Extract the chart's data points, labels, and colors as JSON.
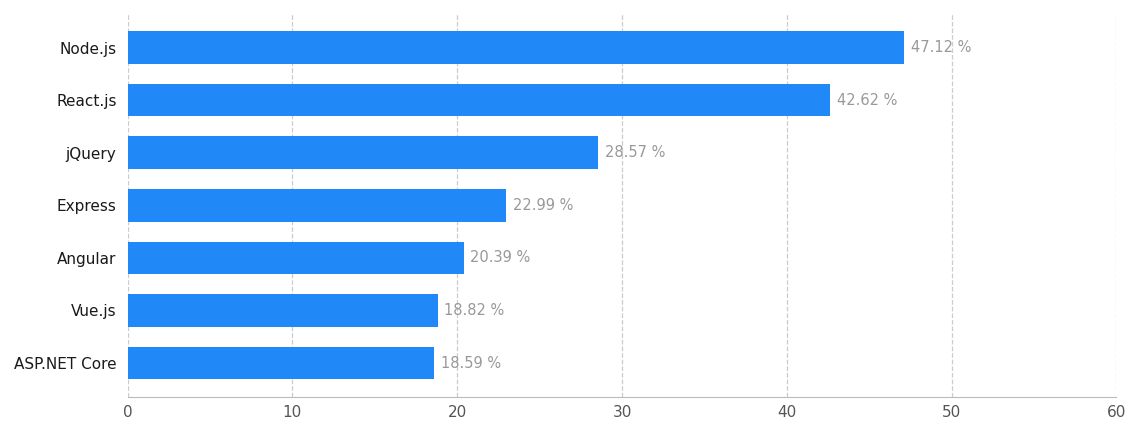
{
  "categories": [
    "ASP.NET Core",
    "Vue.js",
    "Angular",
    "Express",
    "jQuery",
    "React.js",
    "Node.js"
  ],
  "values": [
    18.59,
    18.82,
    20.39,
    22.99,
    28.57,
    42.62,
    47.12
  ],
  "labels": [
    "18.59 %",
    "18.82 %",
    "20.39 %",
    "22.99 %",
    "28.57 %",
    "42.62 %",
    "47.12 %"
  ],
  "bar_color": "#2188f7",
  "background_color": "#ffffff",
  "label_color": "#999999",
  "tick_label_color": "#1a1a1a",
  "xlim": [
    0,
    60
  ],
  "xticks": [
    0,
    10,
    20,
    30,
    40,
    50,
    60
  ],
  "bar_height": 0.62,
  "label_fontsize": 10.5,
  "tick_fontsize": 11,
  "ytick_fontsize": 11,
  "grid_color": "#cccccc",
  "figsize": [
    11.4,
    4.34
  ],
  "dpi": 100
}
